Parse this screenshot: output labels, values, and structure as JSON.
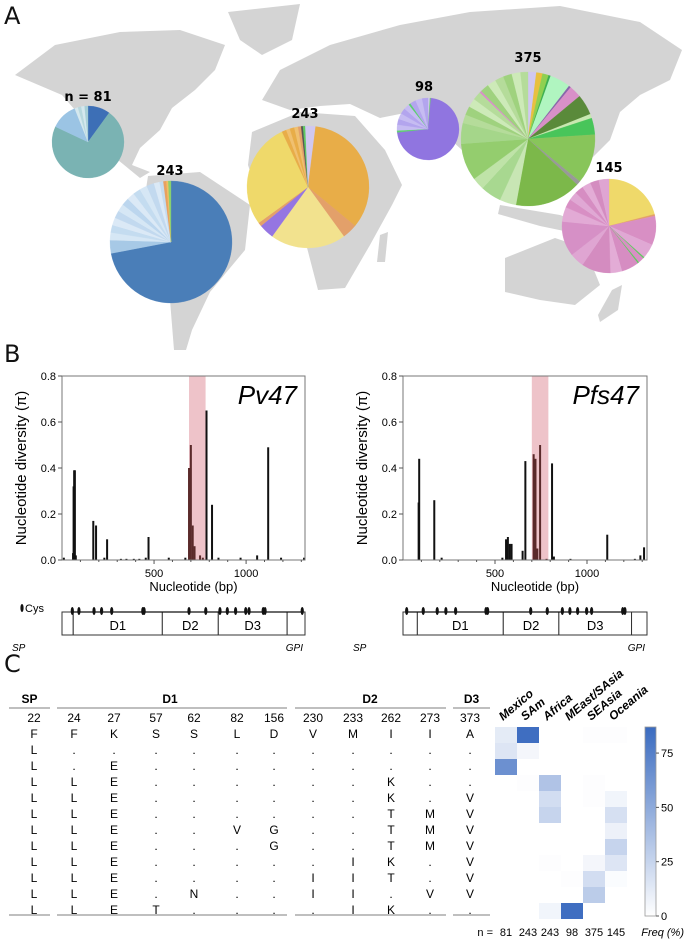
{
  "panels": {
    "a": "A",
    "b": "B",
    "c": "C"
  },
  "chart_data": [
    {
      "type": "pie",
      "panel": "A",
      "pies": [
        {
          "region": "Mexico",
          "label": "n = 81",
          "slices": [
            [
              0.1,
              "#3d6fb6"
            ],
            [
              0.72,
              "#7ab3b3"
            ],
            [
              0.12,
              "#9bc4e4"
            ],
            [
              0.015,
              "#d5e8ee"
            ],
            [
              0.015,
              "#b8d8de"
            ],
            [
              0.015,
              "#d5e8ee"
            ],
            [
              0.015,
              "#a8cfd6"
            ]
          ]
        },
        {
          "region": "SAm",
          "label": "243",
          "slices": [
            [
              0.72,
              "#4a7eb8"
            ],
            [
              0.035,
              "#a7c9e6"
            ],
            [
              0.02,
              "#d6e7f5"
            ],
            [
              0.02,
              "#c4dcf0"
            ],
            [
              0.02,
              "#dbe9f6"
            ],
            [
              0.02,
              "#c2d9ef"
            ],
            [
              0.02,
              "#d6e7f5"
            ],
            [
              0.02,
              "#bcd6ee"
            ],
            [
              0.02,
              "#dbe9f6"
            ],
            [
              0.02,
              "#c4dcf0"
            ],
            [
              0.02,
              "#d6e7f5"
            ],
            [
              0.02,
              "#c2d9ef"
            ],
            [
              0.015,
              "#dbe9f6"
            ],
            [
              0.01,
              "#c4dcf0"
            ],
            [
              0.008,
              "#e8a060"
            ],
            [
              0.005,
              "#f0c060"
            ],
            [
              0.007,
              "#88d070"
            ]
          ]
        },
        {
          "region": "Africa",
          "label": "243",
          "slices": [
            [
              0.02,
              "#d0c8f0"
            ],
            [
              0.34,
              "#e8ad48"
            ],
            [
              0.04,
              "#e3a06a"
            ],
            [
              0.2,
              "#f2e28e"
            ],
            [
              0.04,
              "#9575e2"
            ],
            [
              0.01,
              "#e3a06a"
            ],
            [
              0.28,
              "#efd96a"
            ],
            [
              0.012,
              "#e8ad48"
            ],
            [
              0.01,
              "#f0c070"
            ],
            [
              0.012,
              "#e8ad48"
            ],
            [
              0.01,
              "#f0c070"
            ],
            [
              0.008,
              "#e3a06a"
            ],
            [
              0.005,
              "#555555"
            ],
            [
              0.006,
              "#5cc860"
            ],
            [
              0.007,
              "#d0c8f0"
            ]
          ]
        },
        {
          "region": "MEast/SAsia",
          "label": "98",
          "slices": [
            [
              0.01,
              "#d0c8f0"
            ],
            [
              0.005,
              "#70d070"
            ],
            [
              0.71,
              "#9075e0"
            ],
            [
              0.01,
              "#5ccf70"
            ],
            [
              0.03,
              "#c6bcf2"
            ],
            [
              0.03,
              "#b3a5ee"
            ],
            [
              0.03,
              "#c6bcf2"
            ],
            [
              0.03,
              "#b3a5ee"
            ],
            [
              0.03,
              "#c6bcf2"
            ],
            [
              0.01,
              "#5ccf70"
            ],
            [
              0.03,
              "#b3a5ee"
            ],
            [
              0.035,
              "#c6bcf2"
            ],
            [
              0.03,
              "#b3a5ee"
            ]
          ]
        },
        {
          "region": "SEAsia",
          "label": "375",
          "slices": [
            [
              0.02,
              "#d0c8f0"
            ],
            [
              0.015,
              "#e8c040"
            ],
            [
              0.015,
              "#8fd050"
            ],
            [
              0.005,
              "#3cb050"
            ],
            [
              0.05,
              "#b0f5c0"
            ],
            [
              0.005,
              "#8866aa"
            ],
            [
              0.03,
              "#d890c8"
            ],
            [
              0.05,
              "#5a8a3a"
            ],
            [
              0.01,
              "#c8e8b0"
            ],
            [
              0.04,
              "#48c55a"
            ],
            [
              0.12,
              "#88c55a"
            ],
            [
              0.01,
              "#999999"
            ],
            [
              0.16,
              "#7cb84a"
            ],
            [
              0.04,
              "#c8e6b4"
            ],
            [
              0.05,
              "#a8d890"
            ],
            [
              0.03,
              "#bfe3a8"
            ],
            [
              0.09,
              "#94cd6e"
            ],
            [
              0.05,
              "#a5d68a"
            ],
            [
              0.021,
              "#b5dc9a"
            ],
            [
              0.021,
              "#9fd27e"
            ],
            [
              0.021,
              "#cdeab8"
            ],
            [
              0.021,
              "#b5dc9a"
            ],
            [
              0.005,
              "#d890c8"
            ],
            [
              0.021,
              "#9fd27e"
            ],
            [
              0.021,
              "#cdeab8"
            ],
            [
              0.021,
              "#b5dc9a"
            ],
            [
              0.021,
              "#9fd27e"
            ],
            [
              0.021,
              "#cdeab8"
            ],
            [
              0.018,
              "#b5dc9a"
            ]
          ]
        },
        {
          "region": "Oceania",
          "label": "145",
          "slices": [
            [
              0.21,
              "#efd96a"
            ],
            [
              0.006,
              "#e3a06a"
            ],
            [
              0.1,
              "#d88fc4"
            ],
            [
              0.05,
              "#e0a8d4"
            ],
            [
              0.005,
              "#60c860"
            ],
            [
              0.02,
              "#d88fc4"
            ],
            [
              0.005,
              "#60c860"
            ],
            [
              0.06,
              "#d68dc2"
            ],
            [
              0.04,
              "#e3acd6"
            ],
            [
              0.1,
              "#d48cc0"
            ],
            [
              0.05,
              "#dfa5d2"
            ],
            [
              0.12,
              "#d690c6"
            ],
            [
              0.05,
              "#e2aad5"
            ],
            [
              0.03,
              "#d88fc4"
            ],
            [
              0.03,
              "#e0a8d4"
            ],
            [
              0.03,
              "#d68dc2"
            ],
            [
              0.03,
              "#e3acd6"
            ],
            [
              0.03,
              "#d48cc0"
            ],
            [
              0.035,
              "#dfa5d2"
            ]
          ]
        }
      ]
    },
    {
      "type": "bar",
      "panel": "B",
      "title": "Pv47",
      "ylabel": "Nucleotide diversity (π)",
      "xlabel": "Nucleotide (bp)",
      "xlim": [
        0,
        1320
      ],
      "ylim": [
        0,
        0.8
      ],
      "yticks": [
        "0.0",
        "0.2",
        "0.4",
        "0.6",
        "0.8"
      ],
      "xticks": [
        "500",
        "1000"
      ],
      "highlight": [
        690,
        780
      ],
      "highlight_color": "#eab4bc",
      "points": [
        [
          10,
          0.01
        ],
        [
          60,
          0.03
        ],
        [
          63,
          0.32
        ],
        [
          66,
          0.39
        ],
        [
          70,
          0.39
        ],
        [
          75,
          0.02
        ],
        [
          170,
          0.17
        ],
        [
          185,
          0.15
        ],
        [
          230,
          0.01
        ],
        [
          245,
          0.09
        ],
        [
          320,
          0.005
        ],
        [
          350,
          0.005
        ],
        [
          390,
          0.005
        ],
        [
          420,
          0.005
        ],
        [
          455,
          0.01
        ],
        [
          470,
          0.1
        ],
        [
          580,
          0.01
        ],
        [
          670,
          0.01
        ],
        [
          690,
          0.4
        ],
        [
          700,
          0.5
        ],
        [
          710,
          0.15
        ],
        [
          720,
          0.06
        ],
        [
          750,
          0.02
        ],
        [
          765,
          0.01
        ],
        [
          785,
          0.65
        ],
        [
          815,
          0.24
        ],
        [
          850,
          0.01
        ],
        [
          970,
          0.01
        ],
        [
          1060,
          0.02
        ],
        [
          1120,
          0.49
        ],
        [
          1190,
          0.01
        ],
        [
          1315,
          0.01
        ]
      ],
      "domain_map": {
        "cys_label": "Cys",
        "cys_positions": [
          56,
          92,
          174,
          215,
          270,
          439,
          446,
          690,
          781,
          858,
          898,
          943,
          998,
          1016,
          1093,
          1103,
          1305
        ],
        "segments": [
          [
            "",
            0,
            61
          ],
          [
            "D1",
            61,
            545
          ],
          [
            "D2",
            545,
            849
          ],
          [
            "D3",
            849,
            1223
          ],
          [
            "",
            1223,
            1320
          ]
        ],
        "sp_label": "SP",
        "gpi_label": "GPI"
      }
    },
    {
      "type": "bar",
      "panel": "B",
      "title": "Pfs47",
      "ylabel": "Nucleotide diversity (π)",
      "xlabel": "Nucleotide (bp)",
      "xlim": [
        0,
        1326
      ],
      "ylim": [
        0,
        0.8
      ],
      "yticks": [
        "0.0",
        "0.2",
        "0.4",
        "0.6",
        "0.8"
      ],
      "xticks": [
        "500",
        "1000"
      ],
      "highlight": [
        700,
        790
      ],
      "highlight_color": "#eab4bc",
      "points": [
        [
          85,
          0.25
        ],
        [
          88,
          0.44
        ],
        [
          170,
          0.26
        ],
        [
          210,
          0.01
        ],
        [
          540,
          0.01
        ],
        [
          560,
          0.09
        ],
        [
          570,
          0.1
        ],
        [
          580,
          0.07
        ],
        [
          590,
          0.07
        ],
        [
          650,
          0.04
        ],
        [
          665,
          0.43
        ],
        [
          710,
          0.46
        ],
        [
          720,
          0.44
        ],
        [
          730,
          0.05
        ],
        [
          745,
          0.5
        ],
        [
          780,
          0.005
        ],
        [
          810,
          0.42
        ],
        [
          820,
          0.015
        ],
        [
          910,
          0.005
        ],
        [
          1110,
          0.11
        ],
        [
          1260,
          0.005
        ],
        [
          1290,
          0.02
        ],
        [
          1310,
          0.055
        ]
      ],
      "domain_map": {
        "cys_positions": [
          20,
          110,
          186,
          233,
          286,
          451,
          460,
          694,
          784,
          866,
          907,
          949,
          998,
          1025,
          1194,
          1206
        ],
        "segments": [
          [
            "",
            0,
            78
          ],
          [
            "D1",
            78,
            545
          ],
          [
            "D2",
            545,
            847
          ],
          [
            "D3",
            847,
            1242
          ],
          [
            "",
            1242,
            1326
          ]
        ],
        "sp_label": "SP",
        "gpi_label": "GPI"
      }
    },
    {
      "type": "table",
      "panel": "C",
      "groups": [
        [
          "SP",
          1
        ],
        [
          "D1",
          6
        ],
        [
          "D2",
          4
        ],
        [
          "D3",
          1
        ]
      ],
      "positions": [
        "22",
        "24",
        "27",
        "57",
        "62",
        "82",
        "156",
        "230",
        "233",
        "262",
        "273",
        "373"
      ],
      "rows": [
        [
          "F",
          "F",
          "K",
          "S",
          "S",
          "L",
          "D",
          "V",
          "M",
          "I",
          "I",
          "A"
        ],
        [
          "L",
          ".",
          ".",
          ".",
          ".",
          ".",
          ".",
          ".",
          ".",
          ".",
          ".",
          "."
        ],
        [
          "L",
          ".",
          "E",
          ".",
          ".",
          ".",
          ".",
          ".",
          ".",
          ".",
          ".",
          "."
        ],
        [
          "L",
          "L",
          "E",
          ".",
          ".",
          ".",
          ".",
          ".",
          ".",
          "K",
          ".",
          "."
        ],
        [
          "L",
          "L",
          "E",
          ".",
          ".",
          ".",
          ".",
          ".",
          ".",
          "K",
          ".",
          "V"
        ],
        [
          "L",
          "L",
          "E",
          ".",
          ".",
          ".",
          ".",
          ".",
          ".",
          "T",
          "M",
          "V"
        ],
        [
          "L",
          "L",
          "E",
          ".",
          ".",
          "V",
          "G",
          ".",
          ".",
          "T",
          "M",
          "V"
        ],
        [
          "L",
          "L",
          "E",
          ".",
          ".",
          ".",
          "G",
          ".",
          ".",
          "T",
          "M",
          "V"
        ],
        [
          "L",
          "L",
          "E",
          ".",
          ".",
          ".",
          ".",
          ".",
          "I",
          "K",
          ".",
          "V"
        ],
        [
          "L",
          "L",
          "E",
          ".",
          ".",
          ".",
          ".",
          "I",
          "I",
          "T",
          ".",
          "V"
        ],
        [
          "L",
          "L",
          "E",
          ".",
          "N",
          ".",
          ".",
          "I",
          "I",
          ".",
          "V",
          "V"
        ],
        [
          "L",
          "L",
          "E",
          "T",
          ".",
          ".",
          ".",
          ".",
          "I",
          "K",
          ".",
          "."
        ]
      ]
    },
    {
      "type": "heatmap",
      "panel": "C",
      "columns": [
        "Mexico",
        "SAm",
        "Africa",
        "MEast/SAsia",
        "SEAsia",
        "Oceania"
      ],
      "n_prefix": "n =",
      "n_values": [
        "81",
        "243",
        "243",
        "98",
        "375",
        "145"
      ],
      "colorbar_label": "Freq (%)",
      "colorbar_ticks": [
        "0",
        "25",
        "50",
        "75"
      ],
      "vmax": 87,
      "color_low": "#ffffff",
      "color_high": "#3a6bc0",
      "values": [
        [
          12,
          85,
          0,
          0,
          1,
          1
        ],
        [
          15,
          5,
          0,
          0,
          0,
          0
        ],
        [
          65,
          0,
          0,
          0,
          0,
          0
        ],
        [
          0,
          1,
          35,
          0,
          1,
          0
        ],
        [
          0,
          0,
          20,
          0,
          1,
          6
        ],
        [
          0,
          0,
          25,
          0,
          0,
          18
        ],
        [
          0,
          0,
          0,
          0,
          0,
          8
        ],
        [
          0,
          0,
          0,
          0,
          0,
          25
        ],
        [
          0,
          0,
          1,
          0,
          5,
          15
        ],
        [
          0,
          0,
          0,
          1,
          20,
          2
        ],
        [
          0,
          0,
          0,
          0,
          30,
          0
        ],
        [
          0,
          0,
          6,
          85,
          0,
          0
        ]
      ]
    }
  ]
}
